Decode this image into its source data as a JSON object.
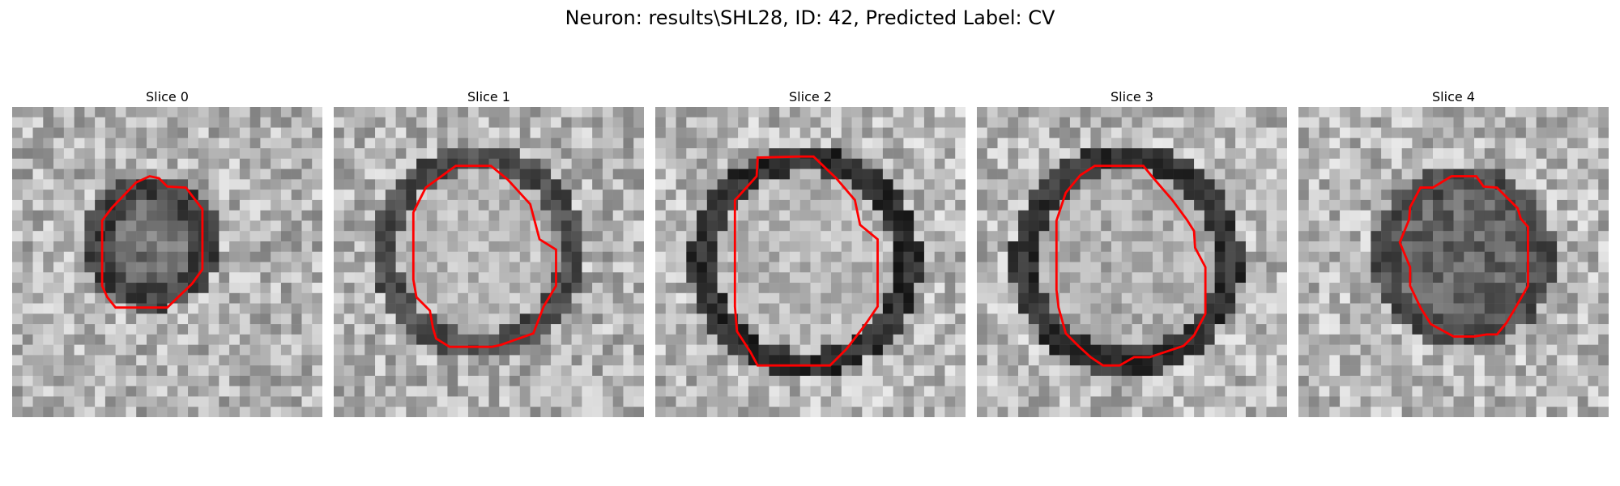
{
  "figure": {
    "title": "Neuron: results\\SHL28, ID: 42, Predicted Label: CV"
  },
  "slices": [
    {
      "title": "Slice 0"
    },
    {
      "title": "Slice 1"
    },
    {
      "title": "Slice 2"
    },
    {
      "title": "Slice 3"
    },
    {
      "title": "Slice 4"
    }
  ],
  "colors": {
    "contour": "#ff0000",
    "colormap": "gray"
  }
}
